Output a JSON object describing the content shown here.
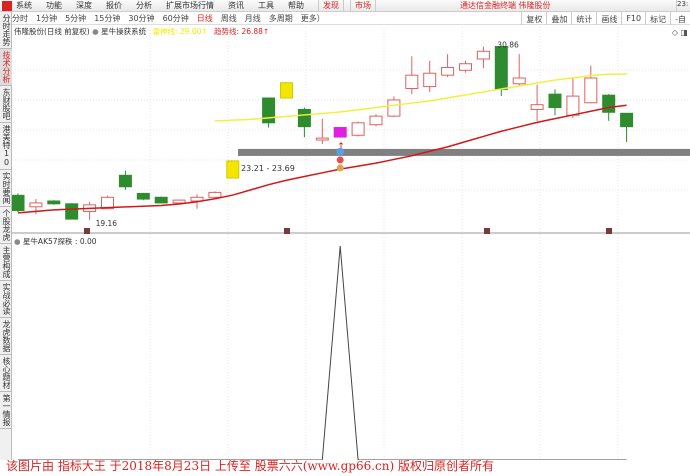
{
  "menu": {
    "items": [
      "系统",
      "功能",
      "深度",
      "报价",
      "分析",
      "扩展市场行情",
      "资讯",
      "工具",
      "帮助"
    ],
    "highlight": [
      "发现",
      "市场"
    ],
    "center_title": "通达信金融终端 伟隆股份",
    "clock": "23:"
  },
  "periods": {
    "items": [
      "分时",
      "1分钟",
      "5分钟",
      "15分钟",
      "30分钟",
      "60分钟",
      "日线",
      "周线",
      "月线",
      "多周期",
      "更多）"
    ],
    "active": "日线"
  },
  "tools": [
    "复权",
    "叠加",
    "统计",
    "画线",
    "F10",
    "标记",
    "-自"
  ],
  "sidebar": {
    "tabs": [
      "分时走势",
      "技术分析",
      "东财股吧",
      "港美特10",
      "实时要闻",
      "个股龙虎",
      "主营构成",
      "实战必读",
      "龙虎数据",
      "核心题材",
      "第一情报"
    ],
    "active": "技术分析"
  },
  "main_info": {
    "title": "伟隆股份(日线 前复权)",
    "indicator": "星牛操获系统",
    "yellow_line": "雷神线: 29.00↑",
    "red_line": "趋势线: 26.88↑"
  },
  "lower_info": {
    "label": "星牛AK57探秩 : 0.00"
  },
  "watermark": "该图片由 指标大王 于2018年8月23日 上传至 股票六六(www.gp66.cn) 版权归原创者所有",
  "colors": {
    "up": "#e06060",
    "down": "#2e8b2e",
    "yellow": "#f0f040",
    "red_ma": "#d01818",
    "band": "#808080"
  },
  "chart_data": {
    "type": "candlestick",
    "ylim": [
      18.9,
      31.3
    ],
    "max_label": "30.86",
    "min_label": "19.16",
    "range_label": "23.21 - 23.69",
    "band": [
      23.21,
      23.69
    ],
    "candles": [
      {
        "o": 20.83,
        "h": 20.96,
        "l": 19.68,
        "c": 19.81
      },
      {
        "o": 20.06,
        "h": 20.58,
        "l": 19.55,
        "c": 20.32
      },
      {
        "o": 20.45,
        "h": 20.5,
        "l": 20.2,
        "c": 20.26
      },
      {
        "o": 20.26,
        "h": 20.3,
        "l": 19.2,
        "c": 19.23
      },
      {
        "o": 19.74,
        "h": 20.4,
        "l": 19.16,
        "c": 20.19
      },
      {
        "o": 19.93,
        "h": 20.8,
        "l": 19.9,
        "c": 20.7
      },
      {
        "o": 22.18,
        "h": 22.5,
        "l": 21.2,
        "c": 21.41
      },
      {
        "o": 20.96,
        "h": 21.0,
        "l": 20.5,
        "c": 20.58
      },
      {
        "o": 20.7,
        "h": 20.75,
        "l": 20.3,
        "c": 20.32
      },
      {
        "o": 20.32,
        "h": 20.55,
        "l": 20.3,
        "c": 20.51
      },
      {
        "o": 20.45,
        "h": 20.9,
        "l": 19.93,
        "c": 20.7
      },
      {
        "o": 20.7,
        "h": 21.1,
        "l": 20.6,
        "c": 21.03
      },
      {
        "o": 22.0,
        "h": 23.2,
        "l": 22.0,
        "c": 23.15,
        "mark": "yellow"
      },
      null,
      {
        "o": 27.39,
        "h": 27.39,
        "l": 25.4,
        "c": 25.72
      },
      {
        "o": 27.39,
        "h": 28.42,
        "l": 27.39,
        "c": 28.42,
        "mark": "yellow"
      },
      {
        "o": 26.62,
        "h": 26.75,
        "l": 24.75,
        "c": 25.46
      },
      {
        "o": 24.56,
        "h": 25.98,
        "l": 24.3,
        "c": 24.69
      },
      {
        "o": 24.76,
        "h": 25.4,
        "l": 24.76,
        "c": 25.4,
        "mark": "magenta"
      },
      {
        "o": 24.88,
        "h": 25.8,
        "l": 24.8,
        "c": 25.72
      },
      {
        "o": 25.59,
        "h": 26.3,
        "l": 25.5,
        "c": 26.17
      },
      {
        "o": 26.17,
        "h": 27.5,
        "l": 26.1,
        "c": 27.26
      },
      {
        "o": 28.03,
        "h": 30.2,
        "l": 27.65,
        "c": 28.93
      },
      {
        "o": 28.16,
        "h": 29.9,
        "l": 27.8,
        "c": 29.06
      },
      {
        "o": 28.93,
        "h": 30.35,
        "l": 28.8,
        "c": 29.45
      },
      {
        "o": 29.26,
        "h": 29.9,
        "l": 29.1,
        "c": 29.7
      },
      {
        "o": 30.02,
        "h": 30.86,
        "l": 29.4,
        "c": 30.54
      },
      {
        "o": 30.86,
        "h": 30.86,
        "l": 27.52,
        "c": 27.97
      },
      {
        "o": 28.35,
        "h": 30.35,
        "l": 28.16,
        "c": 28.74
      },
      {
        "o": 26.62,
        "h": 28.29,
        "l": 25.85,
        "c": 26.94
      },
      {
        "o": 27.65,
        "h": 27.97,
        "l": 26.23,
        "c": 26.75
      },
      {
        "o": 26.23,
        "h": 28.8,
        "l": 26.04,
        "c": 27.52
      },
      {
        "o": 27.07,
        "h": 29.57,
        "l": 27.07,
        "c": 28.74
      },
      {
        "o": 27.58,
        "h": 27.65,
        "l": 25.85,
        "c": 26.43
      },
      {
        "o": 26.36,
        "h": 26.36,
        "l": 24.43,
        "c": 25.46
      }
    ],
    "red_ma": [
      19.65,
      19.75,
      19.85,
      19.9,
      19.95,
      20.0,
      20.05,
      20.1,
      20.15,
      20.25,
      20.4,
      20.6,
      20.85,
      21.2,
      21.55,
      21.85,
      22.1,
      22.35,
      22.6,
      22.8,
      23.0,
      23.25,
      23.5,
      23.8,
      24.1,
      24.45,
      24.8,
      25.15,
      25.45,
      25.75,
      26.0,
      26.25,
      26.5,
      26.75,
      26.9
    ],
    "yellow_ma": [
      null,
      null,
      null,
      null,
      null,
      null,
      null,
      null,
      null,
      null,
      null,
      25.85,
      25.9,
      25.95,
      26.05,
      26.15,
      26.25,
      26.35,
      26.45,
      26.6,
      26.75,
      26.9,
      27.05,
      27.2,
      27.4,
      27.6,
      27.8,
      28.0,
      28.2,
      28.4,
      28.6,
      28.75,
      28.9,
      29.0,
      29.0
    ],
    "lower": {
      "ylim": [
        0,
        1
      ],
      "values": [
        0,
        0,
        0,
        0,
        0,
        0,
        0,
        0,
        0,
        0,
        0,
        0,
        0,
        0,
        0,
        0,
        0,
        0,
        1,
        0,
        0,
        0,
        0,
        0,
        0,
        0,
        0,
        0,
        0,
        0,
        0,
        0,
        0,
        0,
        0
      ]
    },
    "signal_slot": 18
  }
}
